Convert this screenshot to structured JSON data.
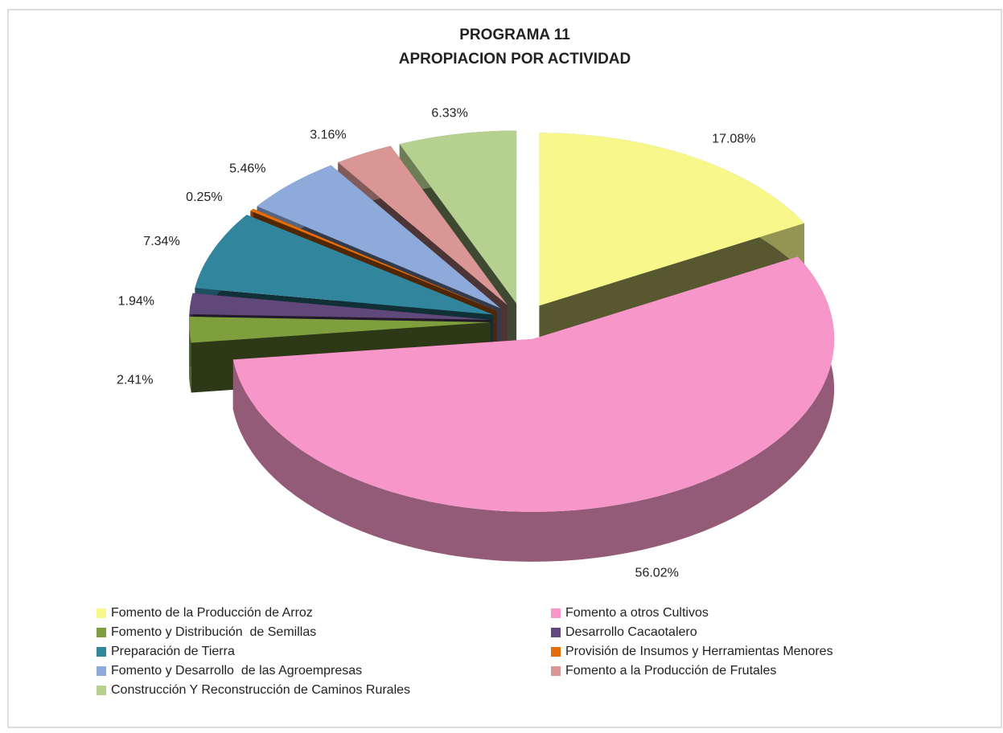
{
  "chart_data": {
    "type": "pie",
    "title": "PROGRAMA 11",
    "subtitle": "APROPIACION POR ACTIVIDAD",
    "categories": [
      "Fomento de la Producción de Arroz",
      "Fomento a otros Cultivos",
      "Fomento y Distribución  de Semillas",
      "Desarrollo Cacaotalero",
      "Preparación de Tierra",
      "Provisión de Insumos y Herramientas Menores",
      "Fomento y Desarrollo  de las Agroempresas",
      "Fomento a la Producción de Frutales",
      "Construcción Y Reconstrucción de Caminos Rurales"
    ],
    "values": [
      17.08,
      56.02,
      2.41,
      1.94,
      7.34,
      0.25,
      5.46,
      3.16,
      6.33
    ],
    "value_labels": [
      "17.08%",
      "56.02%",
      "2.41%",
      "1.94%",
      "7.34%",
      "0.25%",
      "5.46%",
      "3.16%",
      "6.33%"
    ],
    "colors": [
      "#f8f88a",
      "#f797c9",
      "#7f9f3f",
      "#60497a",
      "#31859c",
      "#e46c0a",
      "#8eaadb",
      "#d99694",
      "#b5d08f"
    ],
    "legend": "bottom"
  }
}
